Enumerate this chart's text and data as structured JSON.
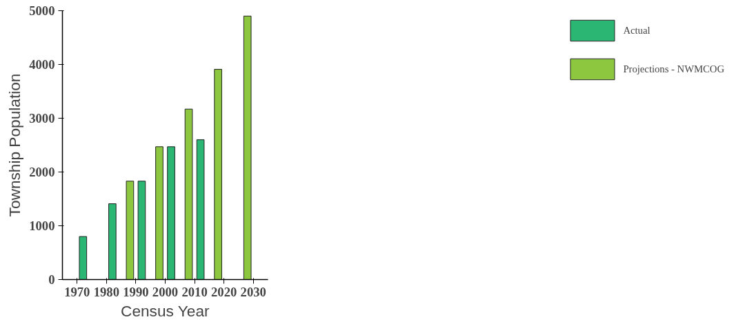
{
  "chart_data": {
    "type": "bar",
    "xlabel": "Census Year",
    "ylabel": "Township Population",
    "categories": [
      "1970",
      "1980",
      "1990",
      "2000",
      "2010",
      "2020",
      "2030"
    ],
    "series": [
      {
        "name": "Actual",
        "color": "#2bb673",
        "values": [
          800,
          1410,
          1830,
          2470,
          2600,
          null,
          null
        ]
      },
      {
        "name": "Projections - NWMCOG",
        "color": "#8dc63f",
        "values": [
          null,
          null,
          1830,
          2470,
          3170,
          3910,
          4900
        ]
      }
    ],
    "ylim": [
      0,
      5000
    ],
    "yticks": [
      0,
      1000,
      2000,
      3000,
      4000,
      5000
    ],
    "grid": false,
    "legend": "right"
  }
}
